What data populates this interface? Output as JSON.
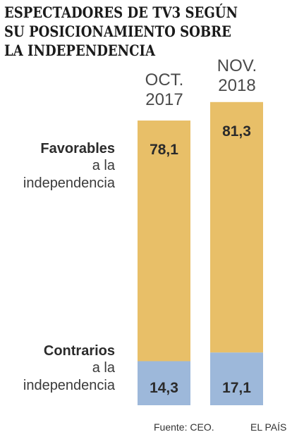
{
  "title": "ESPECTADORES DE TV3 SEGÚN SU POSICIONAMIENTO SOBRE LA INDEPENDENCIA",
  "columns": [
    {
      "line1": "OCT.",
      "line2": "2017"
    },
    {
      "line1": "NOV.",
      "line2": "2018"
    }
  ],
  "labels": {
    "favor_strong": "Favorables",
    "favor_sub1": "a la",
    "favor_sub2": "independencia",
    "contra_strong": "Contrarios",
    "contra_sub1": "a la",
    "contra_sub2": "independencia"
  },
  "footer": {
    "source": "Fuente: CEO.",
    "brand": "EL PAÍS"
  },
  "colors": {
    "favorables": "#E8BF68",
    "contrarios": "#9DB8DA"
  },
  "chart_data": {
    "type": "bar",
    "stacked": true,
    "categories": [
      "OCT. 2017",
      "NOV. 2018"
    ],
    "series": [
      {
        "name": "Favorables a la independencia",
        "values": [
          78.1,
          81.3
        ],
        "labels": [
          "78,1",
          "81,3"
        ]
      },
      {
        "name": "Contrarios a la independencia",
        "values": [
          14.3,
          17.1
        ],
        "labels": [
          "14,3",
          "17,1"
        ]
      }
    ],
    "title": "ESPECTADORES DE TV3 SEGÚN SU POSICIONAMIENTO SOBRE LA INDEPENDENCIA"
  }
}
